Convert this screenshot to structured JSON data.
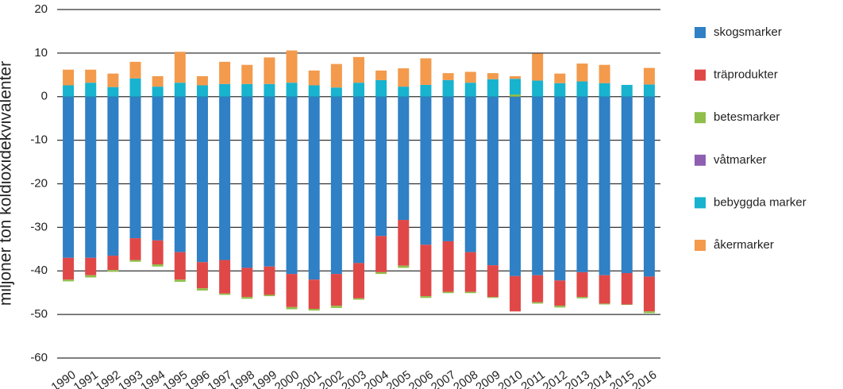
{
  "chart_data": {
    "type": "stacked-bar",
    "y_label": "miljoner ton koldioxidekvivalenter",
    "categories": [
      "1990",
      "1991",
      "1992",
      "1993",
      "1994",
      "1995",
      "1996",
      "1997",
      "1998",
      "1999",
      "2000",
      "2001",
      "2002",
      "2003",
      "2004",
      "2005",
      "2006",
      "2007",
      "2008",
      "2009",
      "2010",
      "2011",
      "2012",
      "2013",
      "2014",
      "2015",
      "2016"
    ],
    "series": [
      {
        "name": "skogsmarker",
        "color": "#2f80c5",
        "values": [
          -37,
          -37,
          -36.5,
          -32.5,
          -33,
          -35.7,
          -38,
          -37.5,
          -39.3,
          -39,
          -40.7,
          -42,
          -40.7,
          -38.2,
          -32,
          -28.3,
          -34,
          -33.2,
          -35.7,
          -38.7,
          -41.2,
          -41,
          -42.2,
          -40.3,
          -41,
          -40.5,
          -41.3
        ]
      },
      {
        "name": "träprodukter",
        "color": "#e04848",
        "values": [
          -5,
          -4,
          -3.3,
          -5,
          -5.5,
          -6.3,
          -6,
          -7.7,
          -6.7,
          -6.5,
          -7.6,
          -6.7,
          -7.3,
          -8.1,
          -8.3,
          -10.5,
          -11.8,
          -11.6,
          -9.1,
          -7.3,
          -8.1,
          -6.2,
          -5.8,
          -5.7,
          -6.5,
          -7.2,
          -8
        ]
      },
      {
        "name": "betesmarker",
        "color": "#8fbf4a",
        "values": [
          -0.4,
          -0.5,
          -0.4,
          -0.4,
          -0.5,
          -0.5,
          -0.5,
          -0.3,
          -0.4,
          -0.3,
          -0.5,
          -0.4,
          -0.5,
          -0.3,
          -0.4,
          -0.5,
          -0.4,
          -0.3,
          -0.3,
          -0.2,
          0.5,
          -0.3,
          -0.4,
          -0.3,
          -0.2,
          -0.1,
          -0.4
        ]
      },
      {
        "name": "våtmarker",
        "color": "#8e5fb0",
        "values": [
          0,
          0,
          0,
          0,
          0,
          0,
          0,
          0,
          0,
          0,
          0,
          0,
          0,
          0,
          0,
          0,
          0,
          0,
          0,
          0,
          0,
          0,
          0,
          0,
          0,
          0,
          0
        ]
      },
      {
        "name": "bebyggda marker",
        "color": "#17b3cf",
        "values": [
          2.6,
          3.2,
          2.2,
          4.2,
          2.3,
          3.2,
          2.6,
          2.9,
          2.9,
          2.9,
          3.2,
          2.6,
          2.1,
          3.2,
          3.8,
          2.3,
          2.7,
          3.8,
          3.2,
          4,
          3.6,
          3.7,
          3.1,
          3.5,
          3.1,
          2.7,
          2.8
        ]
      },
      {
        "name": "åkermarker",
        "color": "#f39a4c",
        "values": [
          3.6,
          3,
          3.1,
          3.8,
          2.4,
          7.1,
          2.1,
          5.1,
          4.4,
          6.1,
          7.4,
          3.4,
          5.4,
          5.9,
          2.2,
          4.2,
          6.1,
          1.6,
          2.5,
          1.4,
          0.6,
          6.2,
          2.2,
          4.1,
          4.2,
          0,
          3.8
        ]
      }
    ],
    "ylim": [
      -60,
      20
    ],
    "yticks": [
      -60,
      -50,
      -40,
      -30,
      -20,
      -10,
      0,
      10,
      20
    ],
    "grid": true
  }
}
